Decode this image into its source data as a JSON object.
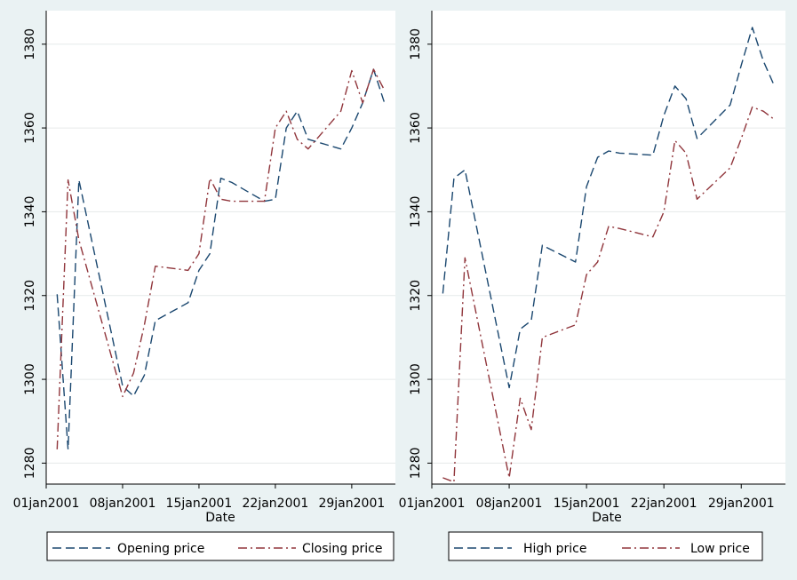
{
  "chart_data": [
    {
      "type": "line",
      "xlabel": "Date",
      "ylabel": "",
      "ylim": [
        1275,
        1388
      ],
      "yticks": [
        1280,
        1300,
        1320,
        1340,
        1360,
        1380
      ],
      "xlim": [
        0,
        32
      ],
      "xticks": [
        {
          "x": 0,
          "label": "01jan2001"
        },
        {
          "x": 7,
          "label": "08jan2001"
        },
        {
          "x": 14,
          "label": "15jan2001"
        },
        {
          "x": 21,
          "label": "22jan2001"
        },
        {
          "x": 28,
          "label": "29jan2001"
        }
      ],
      "grid": true,
      "legend_position": "bottom",
      "x": [
        1,
        2,
        3,
        7,
        8,
        9,
        10,
        13,
        14,
        15,
        16,
        17,
        20,
        21,
        22,
        23,
        24,
        27,
        28,
        29,
        30,
        31
      ],
      "series": [
        {
          "name": "Opening price",
          "color": "#1a476f",
          "dash": "long-dash",
          "values": [
            1320.3,
            1283.3,
            1347.6,
            1298.4,
            1296.0,
            1301.0,
            1314.0,
            1318.3,
            1326.0,
            1330.0,
            1348.0,
            1347.0,
            1342.5,
            1343.0,
            1360.0,
            1364.0,
            1357.3,
            1355.0,
            1360.0,
            1366.0,
            1374.0,
            1366.0
          ]
        },
        {
          "name": "Closing price",
          "color": "#90353b",
          "dash": "dash-dot",
          "values": [
            1283.3,
            1347.6,
            1333.3,
            1295.9,
            1301.5,
            1313.0,
            1327.0,
            1326.0,
            1330.0,
            1348.0,
            1343.0,
            1342.5,
            1342.5,
            1360.0,
            1364.0,
            1357.3,
            1355.0,
            1364.0,
            1373.7,
            1366.0,
            1374.0,
            1369.0
          ]
        }
      ]
    },
    {
      "type": "line",
      "xlabel": "Date",
      "ylabel": "",
      "ylim": [
        1275,
        1388
      ],
      "yticks": [
        1280,
        1300,
        1320,
        1340,
        1360,
        1380
      ],
      "xlim": [
        0,
        32
      ],
      "xticks": [
        {
          "x": 0,
          "label": "01jan2001"
        },
        {
          "x": 7,
          "label": "08jan2001"
        },
        {
          "x": 14,
          "label": "15jan2001"
        },
        {
          "x": 21,
          "label": "22jan2001"
        },
        {
          "x": 28,
          "label": "29jan2001"
        }
      ],
      "grid": true,
      "legend_position": "bottom",
      "x": [
        1,
        2,
        3,
        7,
        8,
        9,
        10,
        13,
        14,
        15,
        16,
        17,
        20,
        21,
        22,
        23,
        24,
        27,
        28,
        29,
        30,
        31
      ],
      "series": [
        {
          "name": "High price",
          "color": "#1a476f",
          "dash": "long-dash",
          "values": [
            1320.5,
            1348.0,
            1350.0,
            1298.0,
            1312.0,
            1314.0,
            1332.0,
            1328.0,
            1346.0,
            1353.0,
            1354.5,
            1354.0,
            1353.5,
            1363.0,
            1370.0,
            1367.0,
            1357.5,
            1365.5,
            1375.0,
            1384.0,
            1376.0,
            1370.0
          ]
        },
        {
          "name": "Low price",
          "color": "#90353b",
          "dash": "dash-dot",
          "values": [
            1276.5,
            1275.5,
            1329.0,
            1276.5,
            1295.5,
            1288.0,
            1310.0,
            1313.0,
            1325.0,
            1328.0,
            1336.5,
            1336.0,
            1334.0,
            1340.0,
            1357.0,
            1354.0,
            1343.0,
            1350.5,
            1357.5,
            1365.0,
            1364.0,
            1362.0
          ]
        }
      ]
    }
  ]
}
